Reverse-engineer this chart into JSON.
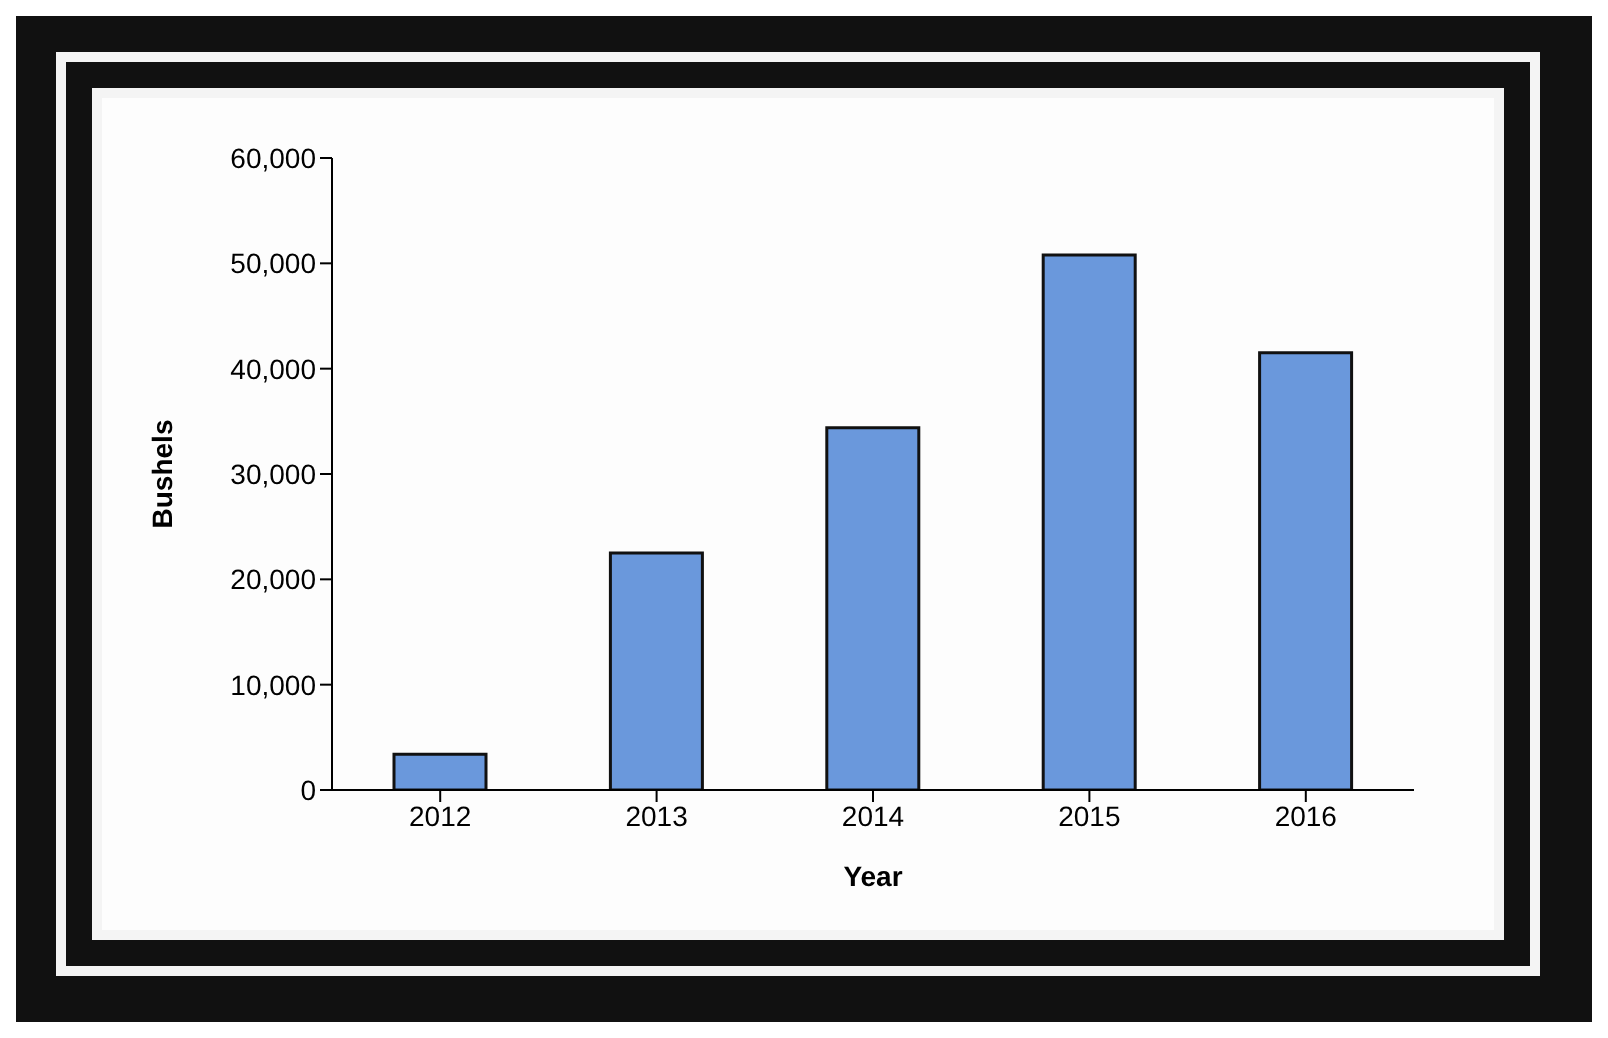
{
  "chart_data": {
    "type": "bar",
    "xlabel": "Year",
    "ylabel": "Bushels",
    "categories": [
      "2012",
      "2013",
      "2014",
      "2015",
      "2016"
    ],
    "values": [
      3400,
      22500,
      34400,
      50800,
      41500
    ],
    "color": "#6a98dc",
    "ylim": [
      0,
      60000
    ],
    "yticks": [
      {
        "value": 0,
        "label": "0"
      },
      {
        "value": 10000,
        "label": "10,000"
      },
      {
        "value": 20000,
        "label": "20,000"
      },
      {
        "value": 30000,
        "label": "30,000"
      },
      {
        "value": 40000,
        "label": "40,000"
      },
      {
        "value": 50000,
        "label": "50,000"
      },
      {
        "value": 60000,
        "label": "60,000"
      }
    ],
    "grid": false,
    "legend": false
  }
}
